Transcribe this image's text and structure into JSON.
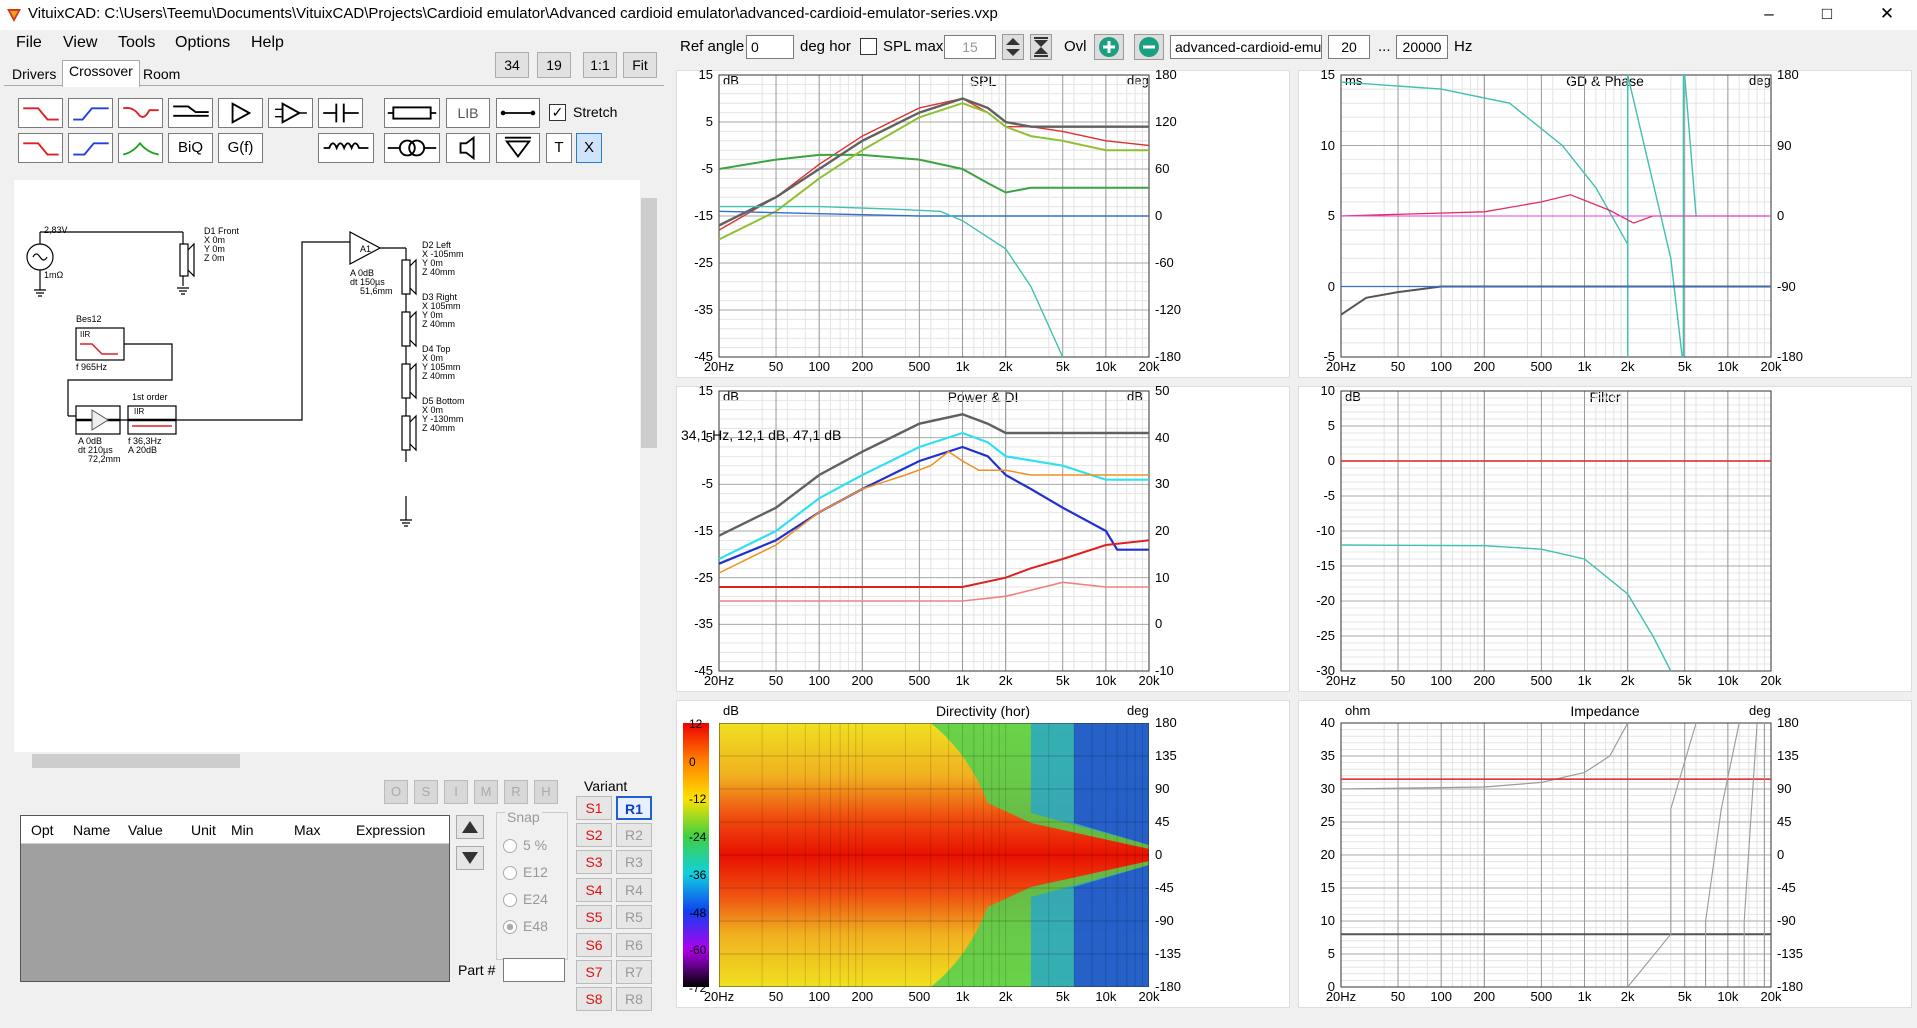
{
  "window": {
    "title": "VituixCAD: C:\\Users\\Teemu\\Documents\\VituixCAD\\Projects\\Cardioid emulator\\Advanced cardioid emulator\\advanced-cardioid-emulator-series.vxp"
  },
  "menu": [
    "File",
    "View",
    "Tools",
    "Options",
    "Help"
  ],
  "view_buttons": [
    "34",
    "19",
    "1:1",
    "Fit"
  ],
  "tabs": [
    "Drivers",
    "Crossover",
    "Room"
  ],
  "tool_labels": {
    "lib": "LIB",
    "stretch": "Stretch",
    "biq": "BiQ",
    "gf": "G(f)",
    "t": "T",
    "x": "X"
  },
  "toolbar": {
    "ref_angle_label": "Ref angle",
    "ref_angle": "0",
    "deg_hor": "deg hor",
    "spl_max_label": "SPL max",
    "spl_max": "15",
    "ovl": "Ovl",
    "file": "advanced-cardioid-emul",
    "f_low": "20",
    "dots": "...",
    "f_high": "20000",
    "hz": "Hz"
  },
  "schematic": {
    "source": "2,83V",
    "source_r": "1mΩ",
    "d1": [
      "D1 Front",
      "X 0m",
      "Y 0m",
      "Z 0m"
    ],
    "bes": "Bes12",
    "bes_iir": "IIR",
    "bes_f": "f  965Hz",
    "amp1": [
      "A  0dB",
      "dt  150µs",
      "51,6mm"
    ],
    "first_order": "1st order",
    "fo_iir": "IIR",
    "amp2": [
      "A  0dB",
      "dt  210µs",
      "72,2mm"
    ],
    "fo_params": [
      "f  36,3Hz",
      "A  20dB"
    ],
    "d2": [
      "D2 Left",
      "X -105mm",
      "Y 0m",
      "Z 40mm"
    ],
    "d3": [
      "D3 Right",
      "X 105mm",
      "Y 0m",
      "Z 40mm"
    ],
    "d4": [
      "D4 Top",
      "X 0m",
      "Y 105mm",
      "Z 40mm"
    ],
    "d5": [
      "D5 Bottom",
      "X 0m",
      "Y -130mm",
      "Z 40mm"
    ]
  },
  "opt_buttons": [
    "O",
    "S",
    "I",
    "M",
    "R",
    "H"
  ],
  "opt_table_headers": [
    "Opt",
    "Name",
    "Value",
    "Unit",
    "Min",
    "Max",
    "Expression"
  ],
  "snap": {
    "label": "Snap",
    "options": [
      "5 %",
      "E12",
      "E24",
      "E48"
    ],
    "selected": "E48"
  },
  "part_label": "Part #",
  "variant": {
    "label": "Variant",
    "s": [
      "S1",
      "S2",
      "S3",
      "S4",
      "S5",
      "S6",
      "S7",
      "S8"
    ],
    "r": [
      "R1",
      "R2",
      "R3",
      "R4",
      "R5",
      "R6",
      "R7",
      "R8"
    ],
    "selected": "R1"
  },
  "freq_ticks": [
    "20Hz",
    "50",
    "100",
    "200",
    "500",
    "1k",
    "2k",
    "5k",
    "10k",
    "20k"
  ],
  "charts": {
    "spl": {
      "title": "SPL",
      "left_unit": "dB",
      "right_unit": "deg",
      "y_left": [
        "15",
        "5",
        "-5",
        "-15",
        "-25",
        "-35",
        "-45"
      ],
      "y_right": [
        "180",
        "120",
        "60",
        "0",
        "-60",
        "-120",
        "-180"
      ]
    },
    "gd": {
      "title": "GD & Phase",
      "left_unit": "ms",
      "right_unit": "deg",
      "y_left": [
        "15",
        "10",
        "5",
        "0",
        "-5"
      ],
      "y_right": [
        "180",
        "90",
        "0",
        "-90",
        "-180"
      ]
    },
    "pdi": {
      "title": "Power & DI",
      "left_unit": "dB",
      "right_unit": "dB",
      "y_left": [
        "15",
        "5",
        "-5",
        "-15",
        "-25",
        "-35",
        "-45"
      ],
      "y_right": [
        "50",
        "40",
        "30",
        "20",
        "10",
        "0",
        "-10"
      ],
      "readout": "34,1 Hz, 12,1 dB, 47,1 dB"
    },
    "filter": {
      "title": "Filter",
      "left_unit": "dB",
      "y_left": [
        "10",
        "5",
        "0",
        "-5",
        "-10",
        "-15",
        "-20",
        "-25",
        "-30"
      ]
    },
    "dir": {
      "title": "Directivity (hor)",
      "left_unit": "dB",
      "right_unit": "deg",
      "scale": [
        "12",
        "0",
        "-12",
        "-24",
        "-36",
        "-48",
        "-60",
        "-72"
      ],
      "y_right": [
        "180",
        "135",
        "90",
        "45",
        "0",
        "-45",
        "-90",
        "-135",
        "-180"
      ]
    },
    "imp": {
      "title": "Impedance",
      "left_unit": "ohm",
      "right_unit": "deg",
      "y_left": [
        "40",
        "35",
        "30",
        "25",
        "20",
        "15",
        "10",
        "5",
        "0"
      ],
      "y_right": [
        "180",
        "135",
        "90",
        "45",
        "0",
        "-45",
        "-90",
        "-135",
        "-180"
      ]
    }
  }
}
